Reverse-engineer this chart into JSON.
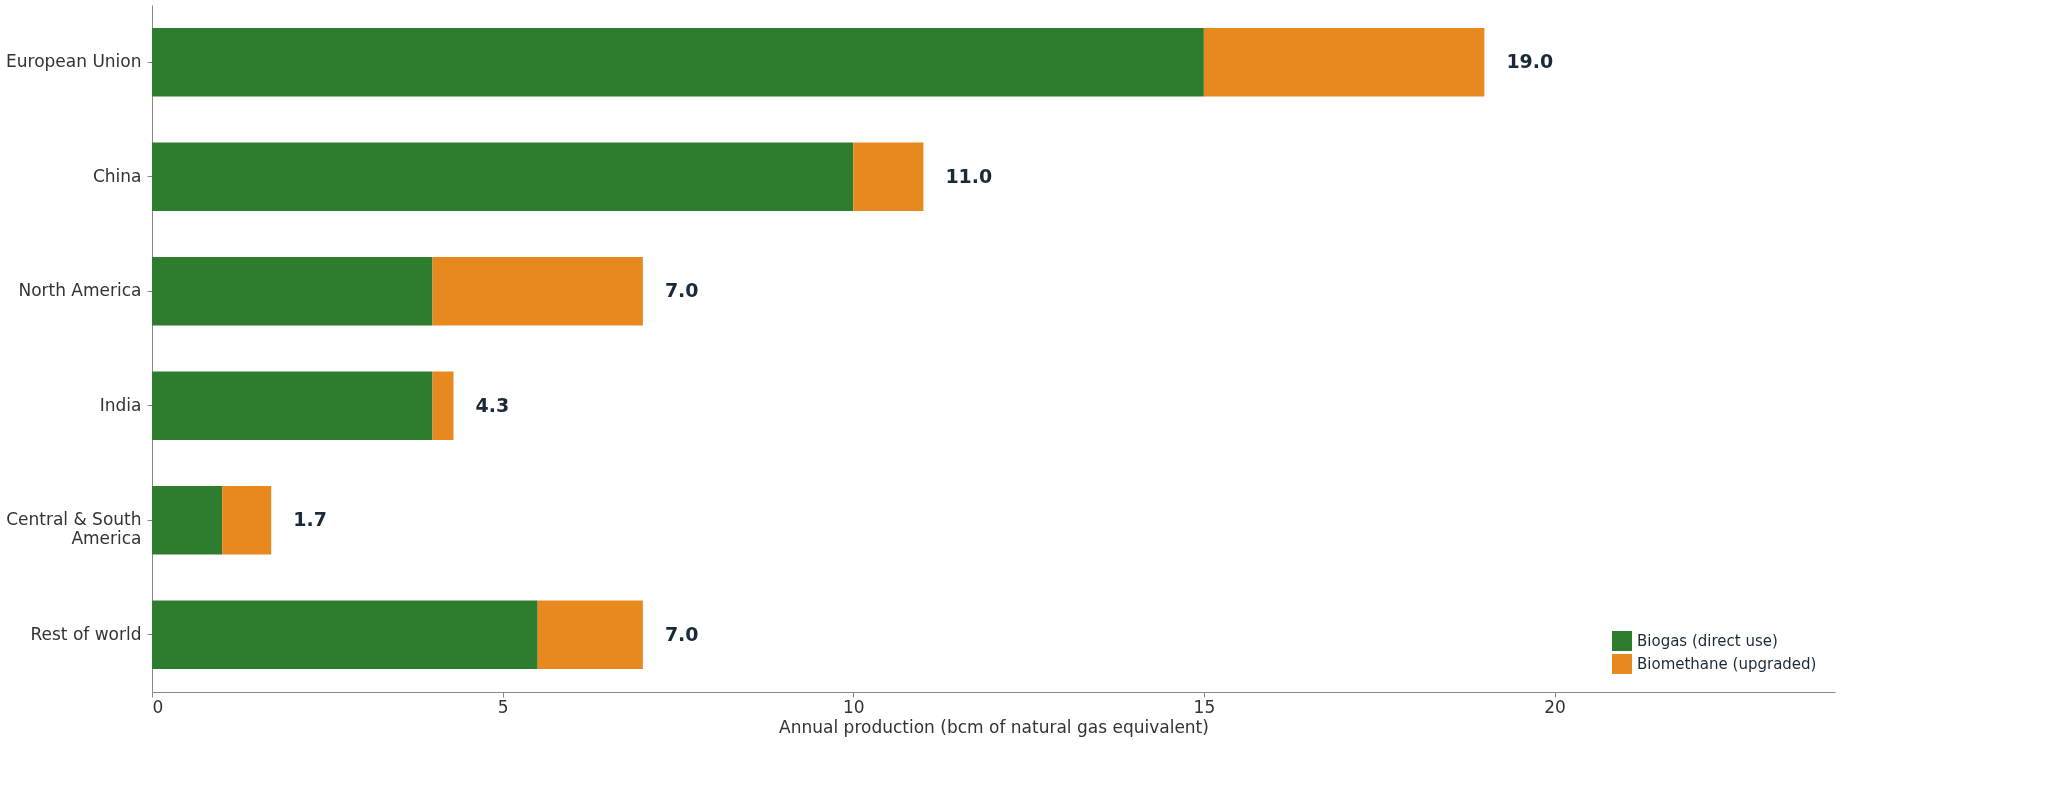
{
  "chart_data": {
    "type": "bar",
    "orientation": "horizontal",
    "stacked": true,
    "xlabel": "Annual production (bcm of natural gas equivalent)",
    "categories": [
      "European Union",
      "China",
      "North America",
      "India",
      "Central & South America",
      "Rest of world"
    ],
    "series": [
      {
        "name": "Biogas (direct use)",
        "color": "#2e7d2e",
        "values": [
          15,
          10,
          4,
          4,
          1,
          5.5
        ]
      },
      {
        "name": "Biomethane (upgraded)",
        "color": "#e8891f",
        "values": [
          4,
          1,
          3,
          0.3,
          0.7,
          1.5
        ]
      }
    ],
    "totals": [
      "19.0",
      "11.0",
      "7.0",
      "4.3",
      "1.7",
      "7.0"
    ],
    "xlim": [
      0,
      24
    ],
    "xticks": [
      0,
      5,
      10,
      15,
      20
    ],
    "grid": false,
    "legend": "bottom right"
  }
}
